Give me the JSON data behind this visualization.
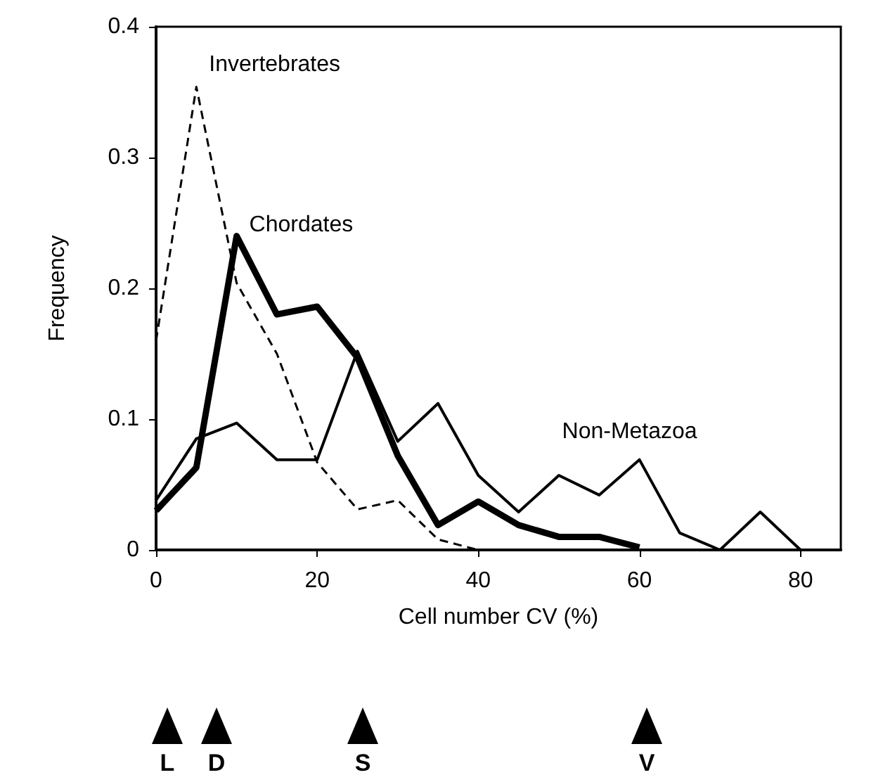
{
  "chart_data": {
    "type": "line",
    "xlabel": "Cell number CV (%)",
    "ylabel": "Frequency",
    "x": [
      0,
      5,
      10,
      15,
      20,
      25,
      30,
      35,
      40,
      45,
      50,
      55,
      60,
      65,
      70,
      75,
      80
    ],
    "series": [
      {
        "name": "Invertebrates",
        "color": "#000000",
        "line_style": "dashed",
        "values": [
          0.16,
          0.354,
          0.204,
          0.15,
          0.067,
          0.031,
          0.038,
          0.008,
          0,
          null,
          null,
          null,
          null,
          null,
          null,
          null,
          null
        ]
      },
      {
        "name": "Chordates",
        "color": "#000000",
        "line_style": "solid",
        "values": [
          0.03,
          0.063,
          0.24,
          0.18,
          0.186,
          0.147,
          0.072,
          0.019,
          0.037,
          0.019,
          0.01,
          0.01,
          0.002,
          null,
          null,
          null,
          null
        ]
      },
      {
        "name": "Non-Metazoa",
        "color": "#000000",
        "line_style": "solid",
        "values": [
          0.038,
          0.085,
          0.097,
          0.069,
          0.069,
          0.152,
          0.083,
          0.112,
          0.057,
          0.029,
          0.057,
          0.042,
          0.069,
          0.013,
          0,
          0.029,
          0
        ]
      }
    ],
    "xlim": [
      0,
      85
    ],
    "xticks": [
      0,
      20,
      40,
      60,
      80
    ],
    "ylim": [
      0,
      0.4
    ],
    "yticks": [
      0,
      0.1,
      0.2,
      0.3,
      0.4
    ],
    "grid": false,
    "legend": false,
    "marker": "none",
    "annotations": [
      "L",
      "D",
      "S",
      "V"
    ]
  }
}
